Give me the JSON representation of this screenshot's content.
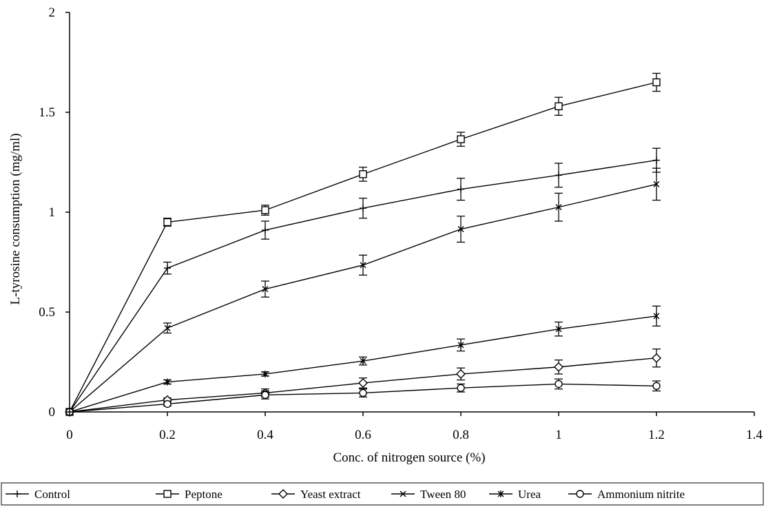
{
  "chart_data": {
    "type": "line",
    "xlabel": "Conc. of nitrogen source (%)",
    "ylabel": "L-tyrosine consumption (mg/ml)",
    "xlim": [
      0,
      1.4
    ],
    "ylim": [
      0,
      2
    ],
    "x_ticks": [
      0,
      0.2,
      0.4,
      0.6,
      0.8,
      1,
      1.2,
      1.4
    ],
    "y_ticks": [
      0,
      0.5,
      1,
      1.5,
      2
    ],
    "legend_position": "bottom",
    "x": [
      0,
      0.2,
      0.4,
      0.6,
      0.8,
      1.0,
      1.2
    ],
    "series": [
      {
        "name": "Control",
        "marker": "plus",
        "values": [
          0,
          0.72,
          0.91,
          1.02,
          1.115,
          1.185,
          1.26
        ],
        "errors": [
          0,
          0.03,
          0.045,
          0.05,
          0.055,
          0.06,
          0.06
        ]
      },
      {
        "name": "Peptone",
        "marker": "square",
        "values": [
          0,
          0.95,
          1.01,
          1.19,
          1.365,
          1.53,
          1.65
        ],
        "errors": [
          0,
          0.02,
          0.025,
          0.035,
          0.035,
          0.045,
          0.045
        ]
      },
      {
        "name": "Yeast extract",
        "marker": "diamond",
        "values": [
          0,
          0.06,
          0.095,
          0.145,
          0.19,
          0.225,
          0.27
        ],
        "errors": [
          0,
          0.01,
          0.02,
          0.025,
          0.03,
          0.035,
          0.045
        ]
      },
      {
        "name": "Tween 80",
        "marker": "x",
        "values": [
          0,
          0.42,
          0.615,
          0.735,
          0.915,
          1.025,
          1.14
        ],
        "errors": [
          0,
          0.025,
          0.04,
          0.05,
          0.065,
          0.07,
          0.08
        ]
      },
      {
        "name": "Urea",
        "marker": "star",
        "values": [
          0,
          0.15,
          0.19,
          0.255,
          0.335,
          0.415,
          0.48
        ],
        "errors": [
          0,
          0.01,
          0.01,
          0.02,
          0.03,
          0.035,
          0.05
        ]
      },
      {
        "name": "Ammonium nitrite",
        "marker": "circle",
        "values": [
          0,
          0.04,
          0.085,
          0.095,
          0.12,
          0.14,
          0.13
        ],
        "errors": [
          0,
          0.01,
          0.02,
          0.02,
          0.02,
          0.025,
          0.025
        ]
      }
    ]
  }
}
